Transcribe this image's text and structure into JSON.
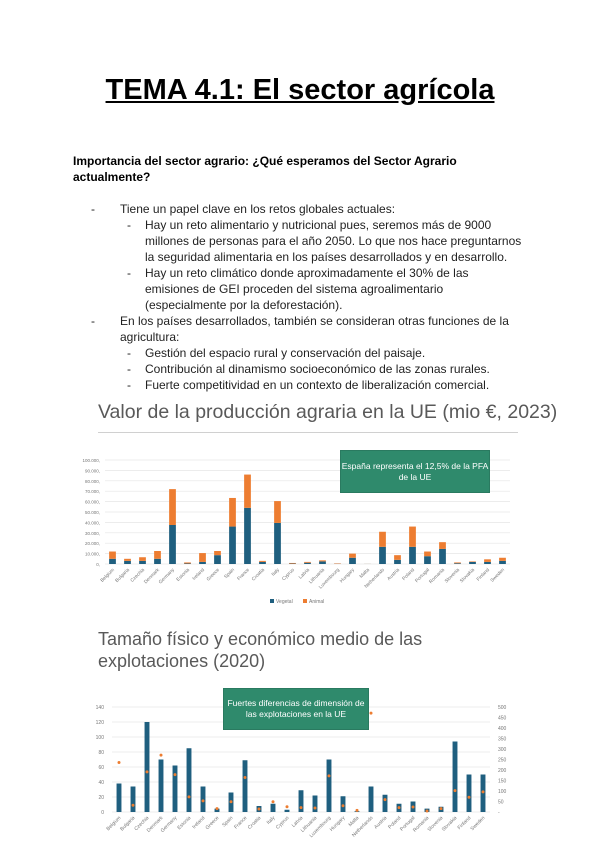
{
  "title": "TEMA 4.1: El sector agrícola",
  "heading": "Importancia del sector agrario: ¿Qué esperamos del Sector Agrario actualmente?",
  "bullets": [
    {
      "level": 1,
      "text": "Tiene un papel clave en los retos globales actuales:"
    },
    {
      "level": 2,
      "text": "Hay un reto alimentario y nutricional pues, seremos más de 9000 millones de personas para el año 2050. Lo que nos hace preguntarnos la seguridad alimentaria en los países desarrollados y en desarrollo."
    },
    {
      "level": 2,
      "text": "Hay un reto climático donde aproximadamente el 30% de las emisiones de GEI proceden del sistema agroalimentario (especialmente por la deforestación)."
    },
    {
      "level": 1,
      "text": "En los países desarrollados, también se consideran otras funciones de la agricultura:"
    },
    {
      "level": 2,
      "text": "Gestión del espacio rural y conservación del paisaje."
    },
    {
      "level": 2,
      "text": "Contribución al dinamismo socioeconómico de las zonas rurales."
    },
    {
      "level": 2,
      "text": "Fuerte competitividad en un contexto de liberalización comercial."
    }
  ],
  "bullet_marker": "-",
  "chart_data": [
    {
      "type": "bar",
      "stacked": true,
      "title": "Valor de la producción agraria en la UE (mio €, 2023)",
      "callout": "España representa el 12,5% de la PFA de la UE",
      "categories": [
        "Belgium",
        "Bulgaria",
        "Czechia",
        "Denmark",
        "Germany",
        "Estonia",
        "Ireland",
        "Greece",
        "Spain",
        "France",
        "Croatia",
        "Italy",
        "Cyprus",
        "Latvia",
        "Lithuania",
        "Luxembourg",
        "Hungary",
        "Malta",
        "Netherlands",
        "Austria",
        "Poland",
        "Portugal",
        "Romania",
        "Slovenia",
        "Slovakia",
        "Finland",
        "Sweden"
      ],
      "series": [
        {
          "name": "Vegetal",
          "color": "#1f5f7f",
          "values": [
            5000,
            3000,
            3000,
            5000,
            37500,
            500,
            2000,
            8500,
            36000,
            54000,
            2000,
            39500,
            400,
            1200,
            2500,
            200,
            6000,
            50,
            16500,
            4000,
            16500,
            7500,
            14500,
            700,
            2000,
            2000,
            3000
          ]
        },
        {
          "name": "Animal",
          "color": "#ed7d31",
          "values": [
            7000,
            2000,
            3500,
            7500,
            34500,
            1000,
            8500,
            4000,
            27500,
            32000,
            1000,
            21000,
            600,
            800,
            1000,
            400,
            4000,
            50,
            14500,
            4500,
            19500,
            4500,
            6500,
            800,
            500,
            2500,
            3000
          ]
        }
      ],
      "yticks": [
        "0,",
        "10.000,",
        "20.000,",
        "30.000,",
        "40.000,",
        "50.000,",
        "60.000,",
        "70.000,",
        "80.000,",
        "90.000,",
        "100.000,"
      ],
      "ylim": [
        0,
        100000
      ],
      "grid": true,
      "legend": "bottom"
    },
    {
      "type": "bar+scatter",
      "title": "Tamaño físico y económico medio de las explotaciones (2020)",
      "callout": "Fuertes diferencias de dimensión de las explotaciones en la UE",
      "categories": [
        "Belgium",
        "Bulgaria",
        "Czechia",
        "Denmark",
        "Germany",
        "Estonia",
        "Ireland",
        "Greece",
        "Spain",
        "France",
        "Croatia",
        "Italy",
        "Cyprus",
        "Latvia",
        "Lithuania",
        "Luxembourg",
        "Hungary",
        "Malta",
        "Netherlands",
        "Austria",
        "Poland",
        "Portugal",
        "Romania",
        "Slovenia",
        "Slovakia",
        "Finland",
        "Sweden"
      ],
      "bars": {
        "axis": "left",
        "color": "#1f5f7f",
        "values": [
          38,
          34,
          120,
          70,
          62,
          85,
          34,
          4.5,
          26,
          69,
          8,
          11,
          3,
          29,
          22,
          70,
          21,
          1,
          34,
          23,
          11,
          14,
          4.5,
          7,
          94,
          50,
          50
        ]
      },
      "points": {
        "axis": "right",
        "color": "#ed7d31",
        "values": [
          236,
          32,
          191,
          271,
          178,
          72,
          53,
          16,
          49,
          164,
          14,
          49,
          25,
          21,
          19,
          172,
          30,
          8,
          471,
          59,
          21,
          24,
          5,
          16,
          102,
          70,
          96
        ]
      },
      "ylim_left": [
        0,
        140
      ],
      "yticks_left": [
        "0",
        "20",
        "40",
        "60",
        "80",
        "100",
        "120",
        "140"
      ],
      "ylim_right": [
        0,
        500
      ],
      "yticks_right": [
        "-",
        "50",
        "100",
        "150",
        "200",
        "250",
        "300",
        "350",
        "400",
        "450",
        "500"
      ],
      "grid": true
    }
  ]
}
